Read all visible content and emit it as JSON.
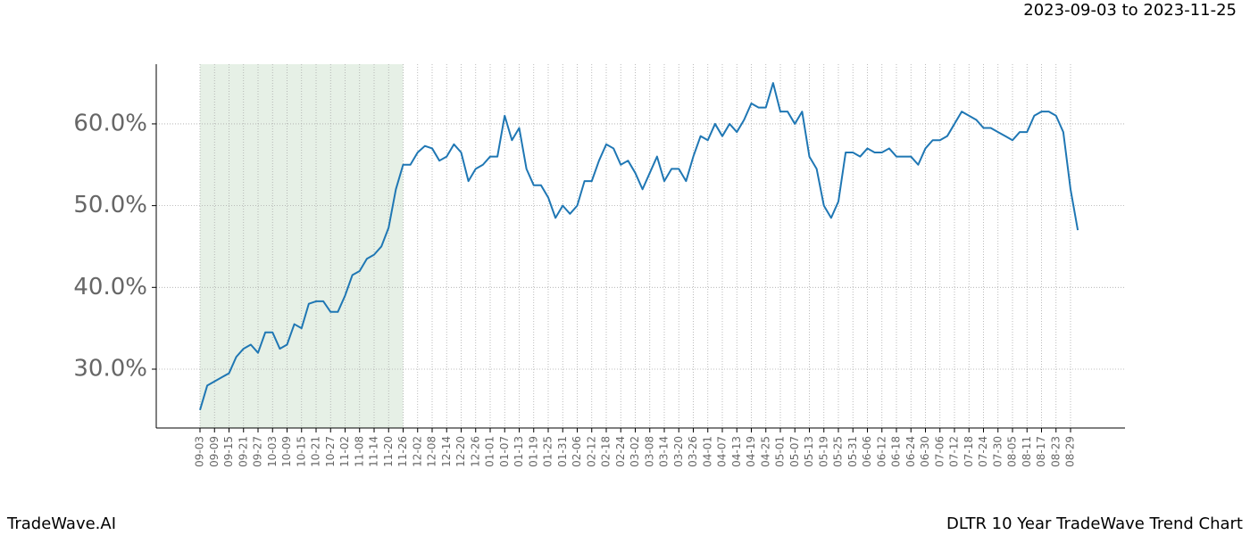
{
  "chart_data": {
    "type": "line",
    "title": "DLTR 10 Year TradeWave Trend Chart",
    "date_range": "2023-09-03 to 2023-11-25",
    "watermark": "TradeWave.AI",
    "categories": [
      "09-03",
      null,
      "09-09",
      null,
      "09-15",
      null,
      "09-21",
      null,
      "09-27",
      null,
      "10-03",
      null,
      "10-09",
      null,
      "10-15",
      null,
      "10-21",
      null,
      "10-27",
      null,
      "11-02",
      null,
      "11-08",
      null,
      "11-14",
      null,
      "11-20",
      null,
      "11-26",
      null,
      "12-02",
      null,
      "12-08",
      null,
      "12-14",
      null,
      "12-20",
      null,
      "12-26",
      null,
      "01-01",
      null,
      "01-07",
      null,
      "01-13",
      null,
      "01-19",
      null,
      "01-25",
      null,
      "01-31",
      null,
      "02-06",
      null,
      "02-12",
      null,
      "02-18",
      null,
      "02-24",
      null,
      "03-02",
      null,
      "03-08",
      null,
      "03-14",
      null,
      "03-20",
      null,
      "03-26",
      null,
      "04-01",
      null,
      "04-07",
      null,
      "04-13",
      null,
      "04-19",
      null,
      "04-25",
      null,
      "05-01",
      null,
      "05-07",
      null,
      "05-13",
      null,
      "05-19",
      null,
      "05-25",
      null,
      "05-31",
      null,
      "06-06",
      null,
      "06-12",
      null,
      "06-18",
      null,
      "06-24",
      null,
      "06-30",
      null,
      "07-06",
      null,
      "07-12",
      null,
      "07-18",
      null,
      "07-24",
      null,
      "07-30",
      null,
      "08-05",
      null,
      "08-11",
      null,
      "08-17",
      null,
      "08-23",
      null,
      "08-29",
      null
    ],
    "series": [
      {
        "name": "DLTR",
        "color": "#1f77b4",
        "values": [
          25,
          28,
          28.5,
          29,
          29.5,
          31.5,
          32.5,
          33,
          32,
          34.5,
          34.5,
          32.5,
          33,
          35.5,
          35,
          38,
          38.3,
          38.3,
          37,
          37,
          39,
          41.5,
          42,
          43.5,
          44,
          45,
          47.3,
          52,
          55,
          55,
          56.5,
          57.3,
          57,
          55.5,
          56,
          57.5,
          56.5,
          53,
          54.5,
          55,
          56,
          56,
          61,
          58,
          59.5,
          54.5,
          52.5,
          52.5,
          51,
          48.5,
          50,
          49,
          50,
          53,
          53,
          55.5,
          57.5,
          57,
          55,
          55.5,
          54,
          52,
          54,
          56,
          53,
          54.5,
          54.5,
          53,
          56,
          58.5,
          58,
          60,
          58.5,
          60,
          59,
          60.5,
          62.5,
          62,
          62,
          65,
          61.5,
          61.5,
          60,
          61.5,
          56,
          54.5,
          50,
          48.5,
          50.5,
          56.5,
          56.5,
          56,
          57,
          56.5,
          56.5,
          57,
          56,
          56,
          56,
          55,
          57,
          58,
          58,
          58.5,
          60,
          61.5,
          61,
          60.5,
          59.5,
          59.5,
          59,
          58.5,
          58,
          59,
          59,
          61,
          61.5,
          61.5,
          61,
          59,
          52,
          47
        ]
      }
    ],
    "highlight": {
      "from": "09-03",
      "to": "11-26",
      "color": "#e6f0e6"
    },
    "ylim": [
      22.8,
      67.3
    ],
    "yticks": [
      {
        "value": 30,
        "label": "30.0%"
      },
      {
        "value": 40,
        "label": "40.0%"
      },
      {
        "value": 50,
        "label": "50.0%"
      },
      {
        "value": 60,
        "label": "60.0%"
      }
    ],
    "grid": true
  }
}
